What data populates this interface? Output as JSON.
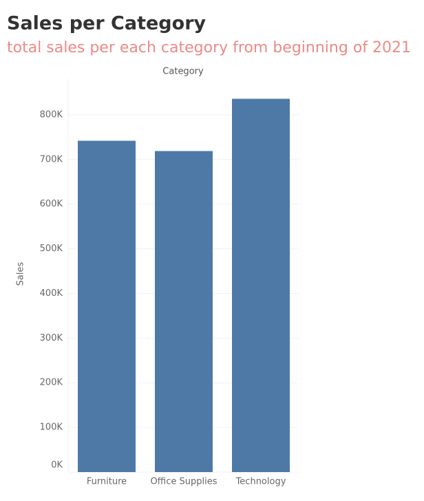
{
  "chart_data": {
    "type": "bar",
    "title": "Sales per Category",
    "subtitle": "total sales per each category from beginning of 2021",
    "x_header": "Category",
    "y_label": "Sales",
    "categories": [
      "Furniture",
      "Office Supplies",
      "Technology"
    ],
    "values": [
      742000,
      719000,
      836000
    ],
    "color": "#4e79a7",
    "ylim": [
      0,
      880000
    ],
    "yticks": [
      {
        "value": 0,
        "label": "0K"
      },
      {
        "value": 100000,
        "label": "100K"
      },
      {
        "value": 200000,
        "label": "200K"
      },
      {
        "value": 300000,
        "label": "300K"
      },
      {
        "value": 400000,
        "label": "400K"
      },
      {
        "value": 500000,
        "label": "500K"
      },
      {
        "value": 600000,
        "label": "600K"
      },
      {
        "value": 700000,
        "label": "700K"
      },
      {
        "value": 800000,
        "label": "800K"
      }
    ],
    "grid": true
  }
}
